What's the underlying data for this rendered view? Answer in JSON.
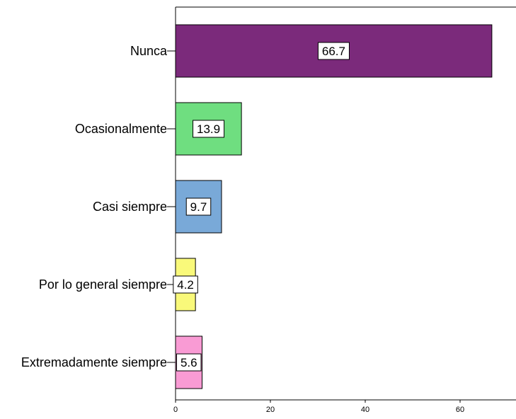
{
  "chart_data": {
    "type": "bar",
    "orientation": "horizontal",
    "categories": [
      "Nunca",
      "Ocasionalmente",
      "Casi siempre",
      "Por lo general siempre",
      "Extremadamente siempre"
    ],
    "values": [
      66.7,
      13.9,
      9.7,
      4.2,
      5.6
    ],
    "data_labels": [
      "66.7",
      "13.9",
      "9.7",
      "4.2",
      "5.6"
    ],
    "colors": [
      "#7b2a7b",
      "#6fde80",
      "#79a9d8",
      "#f9f97a",
      "#f99bd4"
    ],
    "xticks": [
      "0",
      "20",
      "40",
      "60"
    ],
    "tick_values": [
      0,
      20,
      40,
      60
    ],
    "xlim": [
      0,
      72
    ],
    "title": "",
    "xlabel": "",
    "ylabel": "",
    "grid": false,
    "legend": "none"
  }
}
